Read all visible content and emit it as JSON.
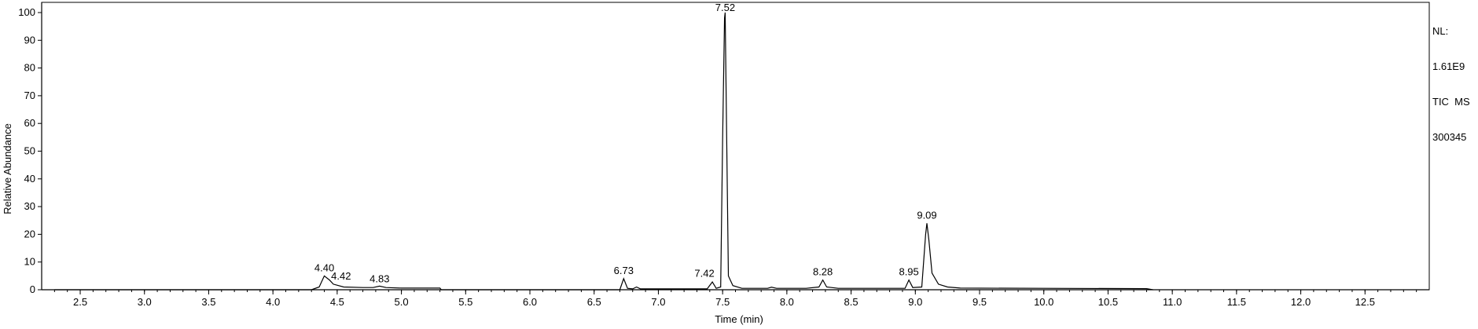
{
  "info": {
    "nl_label": "NL:",
    "nl_value": "1.61E9",
    "scan": "TIC  MS",
    "sample": "300345"
  },
  "chart_data": {
    "type": "line",
    "xlabel": "Time (min)",
    "ylabel": "Relative Abundance",
    "xlim": [
      2.2,
      13.0
    ],
    "ylim": [
      0,
      100
    ],
    "x_ticks": [
      2.5,
      3.0,
      3.5,
      4.0,
      4.5,
      5.0,
      5.5,
      6.0,
      6.5,
      7.0,
      7.5,
      8.0,
      8.5,
      9.0,
      9.5,
      10.0,
      10.5,
      11.0,
      11.5,
      12.0,
      12.5
    ],
    "x_tick_labels": [
      "2.5",
      "3.0",
      "3.5",
      "4.0",
      "4.5",
      "5.0",
      "5.5",
      "6.0",
      "6.5",
      "7.0",
      "7.5",
      "8.0",
      "8.5",
      "9.0",
      "9.5",
      "10.0",
      "10.5",
      "11.0",
      "11.5",
      "12.0",
      "12.5"
    ],
    "y_ticks": [
      0,
      10,
      20,
      30,
      40,
      50,
      60,
      70,
      80,
      90,
      100
    ],
    "y_tick_labels": [
      "0",
      "10",
      "20",
      "30",
      "40",
      "50",
      "60",
      "70",
      "80",
      "90",
      "100"
    ],
    "grid": false,
    "peaks": [
      {
        "label": "4.40",
        "rt": 4.4,
        "abundance": 5
      },
      {
        "label": "4.42",
        "rt": 4.42,
        "abundance": 2
      },
      {
        "label": "4.83",
        "rt": 4.83,
        "abundance": 1
      },
      {
        "label": "6.73",
        "rt": 6.73,
        "abundance": 4
      },
      {
        "label": "7.42",
        "rt": 7.42,
        "abundance": 3
      },
      {
        "label": "7.52",
        "rt": 7.52,
        "abundance": 100
      },
      {
        "label": "8.28",
        "rt": 8.28,
        "abundance": 3.5
      },
      {
        "label": "8.95",
        "rt": 8.95,
        "abundance": 3.5
      },
      {
        "label": "9.09",
        "rt": 9.09,
        "abundance": 24
      }
    ],
    "trace": [
      [
        2.3,
        0
      ],
      [
        4.3,
        0
      ],
      [
        4.36,
        1
      ],
      [
        4.4,
        5
      ],
      [
        4.44,
        3.5
      ],
      [
        4.47,
        2
      ],
      [
        4.55,
        1
      ],
      [
        4.7,
        0.8
      ],
      [
        4.78,
        0.8
      ],
      [
        4.83,
        1.3
      ],
      [
        4.88,
        0.8
      ],
      [
        5.0,
        0.6
      ],
      [
        5.3,
        0.6
      ],
      [
        5.31,
        0
      ],
      [
        6.7,
        0
      ],
      [
        6.73,
        4
      ],
      [
        6.76,
        0.5
      ],
      [
        6.8,
        0.3
      ],
      [
        6.83,
        1
      ],
      [
        6.86,
        0.3
      ],
      [
        7.38,
        0.3
      ],
      [
        7.42,
        2.8
      ],
      [
        7.45,
        0.5
      ],
      [
        7.485,
        1
      ],
      [
        7.5,
        55
      ],
      [
        7.515,
        98
      ],
      [
        7.52,
        100
      ],
      [
        7.53,
        60
      ],
      [
        7.545,
        5
      ],
      [
        7.58,
        1.5
      ],
      [
        7.65,
        0.5
      ],
      [
        7.85,
        0.5
      ],
      [
        7.88,
        0.9
      ],
      [
        7.92,
        0.5
      ],
      [
        8.15,
        0.5
      ],
      [
        8.25,
        1
      ],
      [
        8.28,
        3.5
      ],
      [
        8.31,
        1
      ],
      [
        8.4,
        0.5
      ],
      [
        8.92,
        0.5
      ],
      [
        8.95,
        3.5
      ],
      [
        8.98,
        0.8
      ],
      [
        9.05,
        1
      ],
      [
        9.08,
        20
      ],
      [
        9.09,
        24
      ],
      [
        9.105,
        18
      ],
      [
        9.13,
        6
      ],
      [
        9.18,
        2
      ],
      [
        9.25,
        1
      ],
      [
        9.35,
        0.6
      ],
      [
        10.0,
        0.5
      ],
      [
        10.8,
        0.4
      ],
      [
        10.85,
        0
      ]
    ]
  }
}
